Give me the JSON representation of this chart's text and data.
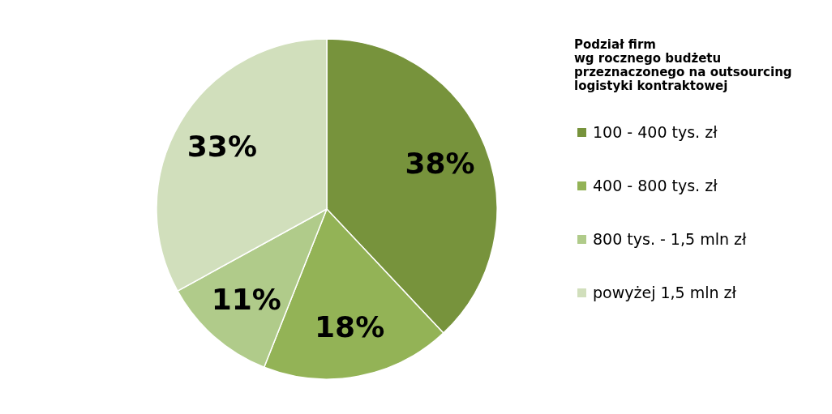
{
  "chart_data": {
    "type": "pie",
    "legend_title": "Podział firm\nwg rocznego budżetu\nprzeznaczonego na outsourcing\nlogistyki kontraktowej",
    "categories": [
      "100 - 400 tys. zł",
      "400 - 800 tys. zł",
      "800 tys. - 1,5 mln zł",
      "powyżej 1,5 mln zł"
    ],
    "values": [
      38,
      18,
      11,
      33
    ],
    "value_labels": [
      "38%",
      "18%",
      "11%",
      "33%"
    ],
    "colors": [
      "#77933c",
      "#93b356",
      "#b0cb8a",
      "#d1dfbc"
    ],
    "legend": "right"
  }
}
